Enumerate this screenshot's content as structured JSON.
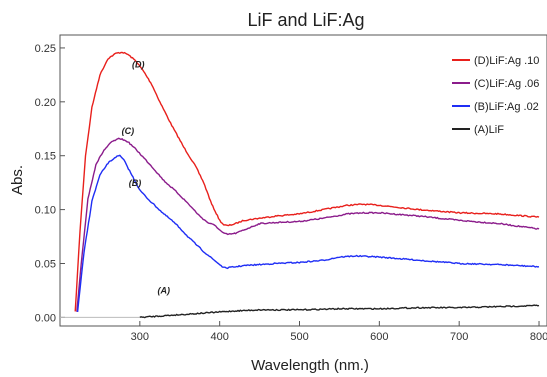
{
  "chart_data": {
    "type": "line",
    "title": "LiF  and  LiF:Ag",
    "xlabel": "Wavelength (nm.)",
    "ylabel": "Abs.",
    "xlim": [
      200,
      810
    ],
    "ylim": [
      -0.008,
      0.262
    ],
    "xticks": [
      300,
      400,
      500,
      600,
      700,
      800
    ],
    "yticks": [
      0.0,
      0.05,
      0.1,
      0.15,
      0.2,
      0.25
    ],
    "yticklabels": [
      "0.00",
      "0.05",
      "0.10",
      "0.15",
      "0.20",
      "0.25"
    ],
    "legend_position": "top-right",
    "grid": false,
    "series": [
      {
        "name": "(D)LiF:Ag .10",
        "color": "#e8201c",
        "annotation": "(D)",
        "annotation_at": [
          298,
          0.232
        ],
        "x": [
          219,
          225,
          232,
          240,
          250,
          260,
          270,
          278,
          285,
          295,
          305,
          315,
          325,
          340,
          355,
          370,
          380,
          390,
          400,
          405,
          410,
          420,
          430,
          440,
          450,
          470,
          500,
          530,
          560,
          580,
          600,
          650,
          700,
          750,
          800
        ],
        "y": [
          0.005,
          0.08,
          0.15,
          0.195,
          0.225,
          0.24,
          0.245,
          0.246,
          0.244,
          0.238,
          0.228,
          0.216,
          0.2,
          0.178,
          0.158,
          0.14,
          0.125,
          0.105,
          0.09,
          0.086,
          0.085,
          0.087,
          0.09,
          0.091,
          0.092,
          0.094,
          0.096,
          0.1,
          0.104,
          0.105,
          0.104,
          0.1,
          0.097,
          0.096,
          0.093
        ]
      },
      {
        "name": "(C)LiF:Ag .06",
        "color": "#8b1c8b",
        "annotation": "(C)",
        "annotation_at": [
          285,
          0.17
        ],
        "x": [
          221,
          228,
          235,
          245,
          255,
          265,
          275,
          285,
          295,
          305,
          315,
          330,
          345,
          360,
          375,
          385,
          395,
          400,
          405,
          410,
          420,
          430,
          440,
          450,
          470,
          500,
          530,
          560,
          580,
          600,
          650,
          700,
          750,
          800
        ],
        "y": [
          0.005,
          0.06,
          0.11,
          0.142,
          0.155,
          0.163,
          0.166,
          0.163,
          0.156,
          0.148,
          0.14,
          0.127,
          0.117,
          0.106,
          0.094,
          0.088,
          0.085,
          0.081,
          0.078,
          0.077,
          0.078,
          0.081,
          0.084,
          0.087,
          0.088,
          0.089,
          0.092,
          0.096,
          0.097,
          0.097,
          0.094,
          0.09,
          0.087,
          0.082
        ]
      },
      {
        "name": "(B)LiF:Ag .02",
        "color": "#1f2ef5",
        "annotation": "(B)",
        "annotation_at": [
          294,
          0.122
        ],
        "x": [
          222,
          230,
          240,
          250,
          260,
          270,
          275,
          280,
          290,
          300,
          310,
          320,
          330,
          340,
          350,
          360,
          370,
          380,
          390,
          400,
          405,
          410,
          420,
          430,
          450,
          470,
          500,
          530,
          550,
          570,
          600,
          650,
          700,
          750,
          800
        ],
        "y": [
          0.005,
          0.06,
          0.108,
          0.132,
          0.143,
          0.149,
          0.15,
          0.146,
          0.132,
          0.118,
          0.11,
          0.103,
          0.096,
          0.09,
          0.083,
          0.075,
          0.068,
          0.061,
          0.055,
          0.049,
          0.046,
          0.046,
          0.047,
          0.048,
          0.049,
          0.05,
          0.051,
          0.053,
          0.056,
          0.057,
          0.056,
          0.053,
          0.05,
          0.049,
          0.047
        ]
      },
      {
        "name": "(A)LiF",
        "color": "#222222",
        "annotation": "(A)",
        "annotation_at": [
          330,
          0.022
        ],
        "x": [
          300,
          320,
          340,
          360,
          380,
          400,
          420,
          450,
          500,
          550,
          600,
          650,
          700,
          750,
          800
        ],
        "y": [
          0.0,
          0.001,
          0.002,
          0.003,
          0.004,
          0.005,
          0.006,
          0.007,
          0.007,
          0.008,
          0.008,
          0.009,
          0.009,
          0.01,
          0.011
        ]
      }
    ]
  }
}
